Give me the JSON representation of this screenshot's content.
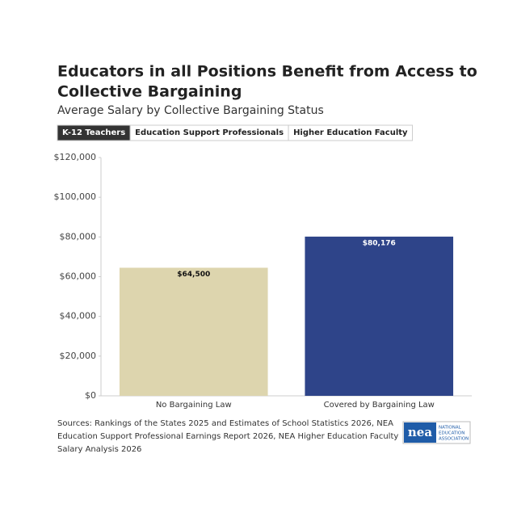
{
  "chart_data": {
    "type": "bar",
    "title_lines": [
      "Educators in all Positions Benefit from Access to",
      "Collective Bargaining"
    ],
    "subtitle": "Average Salary by Collective Bargaining Status",
    "tabs": [
      "K-12 Teachers",
      "Education Support Professionals",
      "Higher Education Faculty"
    ],
    "active_tab": 0,
    "categories": [
      "No Bargaining Law",
      "Covered by Bargaining Law"
    ],
    "values": [
      64500,
      80176
    ],
    "value_labels": [
      "$64,500",
      "$80,176"
    ],
    "colors": [
      "#ddd5ae",
      "#2e4489"
    ],
    "label_colors": [
      "#111111",
      "#ffffff"
    ],
    "ylim": [
      0,
      120000
    ],
    "yticks": [
      {
        "value": 0,
        "label": "$0"
      },
      {
        "value": 20000,
        "label": "$20,000"
      },
      {
        "value": 40000,
        "label": "$40,000"
      },
      {
        "value": 60000,
        "label": "$60,000"
      },
      {
        "value": 80000,
        "label": "$80,000"
      },
      {
        "value": 100000,
        "label": "$100,000"
      },
      {
        "value": 120000,
        "label": "$120,000"
      }
    ],
    "source_lines": [
      "Sources: Rankings of the States 2025 and Estimates of School Statistics 2026, NEA",
      "Education Support Professional Earnings Report 2026, NEA Higher Education Faculty",
      "Salary Analysis 2026"
    ],
    "logo": {
      "mark": "nea",
      "name_lines": [
        "NATIONAL",
        "EDUCATION",
        "ASSOCIATION"
      ]
    }
  }
}
